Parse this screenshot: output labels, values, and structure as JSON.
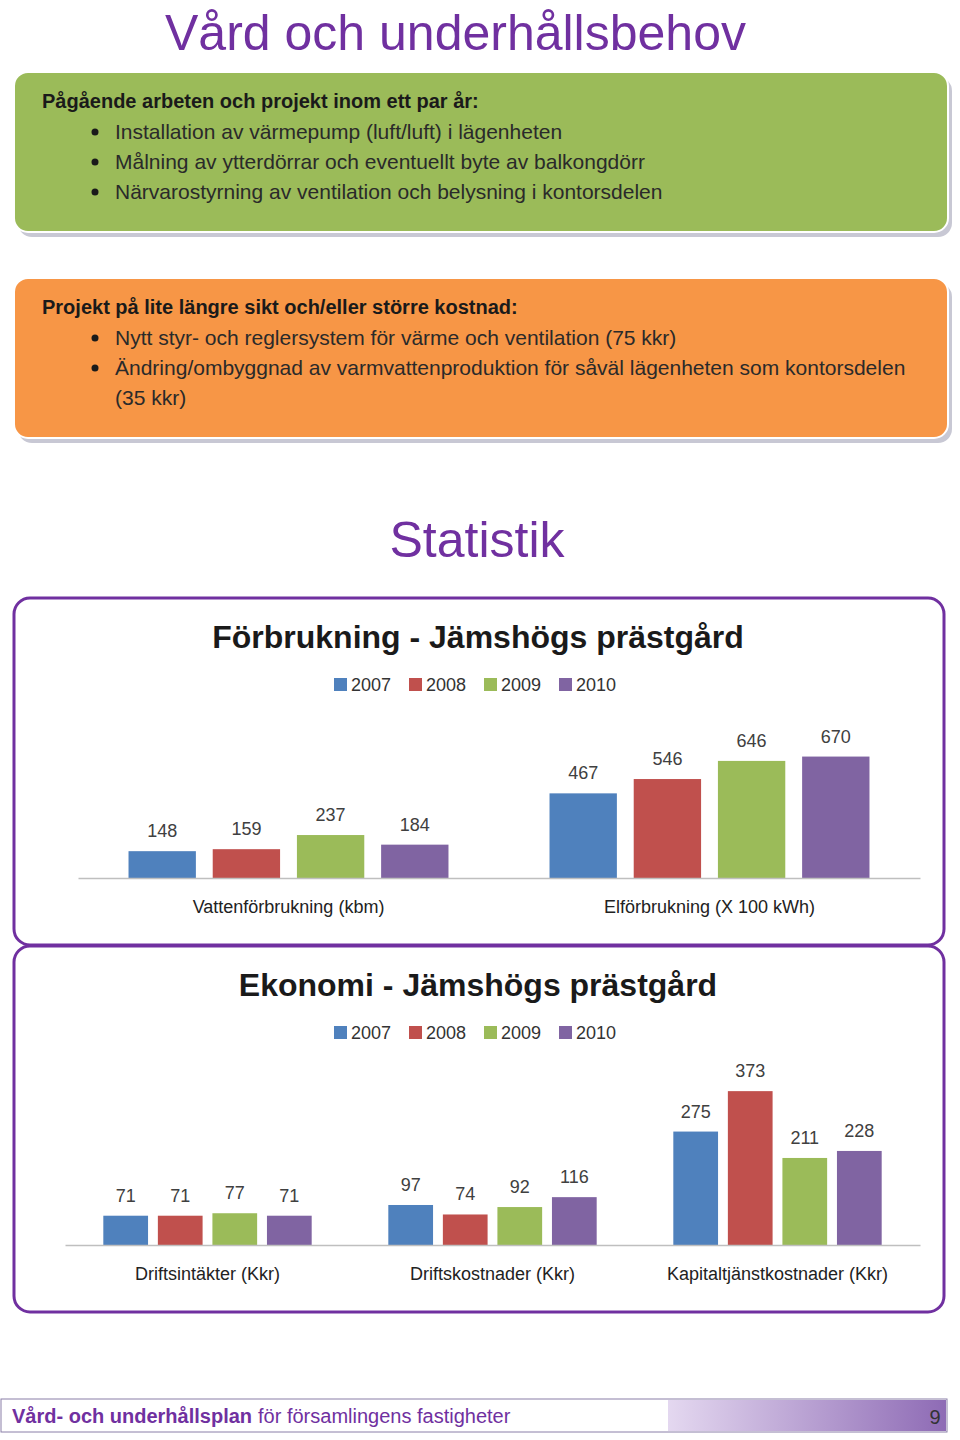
{
  "header": {
    "title": "Vård och underhållsbehov"
  },
  "current_work": {
    "heading": "Pågående arbeten och projekt inom ett par år:",
    "items": [
      "Installation av värmepump (luft/luft) i lägenheten",
      "Målning av ytterdörrar och eventuellt byte av balkongdörr",
      "Närvarostyrning av ventilation och belysning i kontorsdelen"
    ]
  },
  "long_term": {
    "heading": "Projekt på lite längre sikt och/eller större kostnad:",
    "items": [
      "Nytt styr- och reglersystem för värme och ventilation (75 kkr)",
      "Ändring/ombyggnad av varmvattenproduktion för såväl lägenheten som kontorsdelen (35 kkr)"
    ]
  },
  "section_title": "Statistik",
  "chart_data": [
    {
      "type": "bar",
      "title": "Förbrukning - Jämshögs prästgård",
      "categories": [
        "Vattenförbrukning (kbm)",
        "Elförbrukning (X 100 kWh)"
      ],
      "series": [
        {
          "name": "2007",
          "color": "#4f81bd",
          "values": [
            148,
            467
          ]
        },
        {
          "name": "2008",
          "color": "#c0504d",
          "values": [
            159,
            546
          ]
        },
        {
          "name": "2009",
          "color": "#9bbb59",
          "values": [
            237,
            646
          ]
        },
        {
          "name": "2010",
          "color": "#8064a2",
          "values": [
            184,
            670
          ]
        }
      ],
      "ylim": [
        0,
        800
      ],
      "legend": "top",
      "data_labels": true,
      "tick_labels": "x",
      "grid": false
    },
    {
      "type": "bar",
      "title": "Ekonomi - Jämshögs prästgård",
      "categories": [
        "Driftsintäkter (Kkr)",
        "Driftskostnader (Kkr)",
        "Kapitaltjänstkostnader (Kkr)"
      ],
      "series": [
        {
          "name": "2007",
          "color": "#4f81bd",
          "values": [
            71,
            97,
            275
          ]
        },
        {
          "name": "2008",
          "color": "#c0504d",
          "values": [
            71,
            74,
            373
          ]
        },
        {
          "name": "2009",
          "color": "#9bbb59",
          "values": [
            77,
            92,
            211
          ]
        },
        {
          "name": "2010",
          "color": "#8064a2",
          "values": [
            71,
            116,
            228
          ]
        }
      ],
      "ylim": [
        0,
        400
      ],
      "legend": "top",
      "data_labels": true,
      "tick_labels": "x",
      "grid": false
    }
  ],
  "footer": {
    "bold": "Vård- och underhållsplan",
    "rest": "för församlingens fastigheter",
    "page": 9
  }
}
